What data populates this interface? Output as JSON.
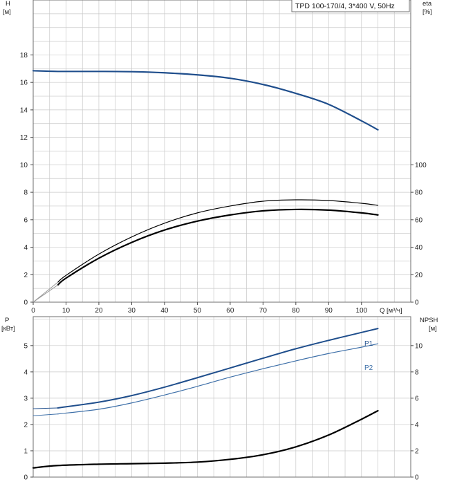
{
  "chart_title": "TPD 100-170/4, 3*400 V, 50Hz",
  "colors": {
    "blue": "#1f4e8c",
    "blue_light": "#3d6fa8",
    "black": "#000000",
    "grid": "#c8c8c8",
    "frame": "#6e6e6e"
  },
  "chart_data": [
    {
      "type": "line",
      "name": "top",
      "x_label": "Q [м³/ч]",
      "y_left_label": [
        "H",
        "[м]"
      ],
      "y_right_label": [
        "eta",
        "[%]"
      ],
      "x_ticks": [
        "0",
        "10",
        "20",
        "30",
        "40",
        "50",
        "60",
        "70",
        "80",
        "90",
        "100"
      ],
      "y_left_ticks": [
        "0",
        "2",
        "4",
        "6",
        "8",
        "10",
        "12",
        "14",
        "16",
        "18"
      ],
      "y_right_ticks": [
        "0",
        "20",
        "40",
        "60",
        "80",
        "100"
      ],
      "xlim": [
        0,
        115
      ],
      "y_left_lim": [
        0,
        22
      ],
      "y_right_lim": [
        0,
        220
      ],
      "grid": true,
      "series": [
        {
          "role": "H",
          "axis": "left",
          "color": "blue",
          "width": 2.2,
          "x": [
            0,
            7.5,
            20,
            30,
            40,
            50,
            60,
            70,
            80,
            90,
            100,
            105
          ],
          "y": [
            16.85,
            16.8,
            16.8,
            16.78,
            16.7,
            16.55,
            16.3,
            15.85,
            15.2,
            14.4,
            13.2,
            12.55
          ]
        },
        {
          "role": "eta",
          "axis": "right",
          "color": "black",
          "width": 1.2,
          "x": [
            7.5,
            10,
            20,
            30,
            40,
            50,
            60,
            70,
            80,
            90,
            100,
            105
          ],
          "y": [
            14.5,
            19.5,
            35,
            47.5,
            57.5,
            65,
            70,
            73.5,
            74.5,
            74,
            72,
            70.5
          ]
        },
        {
          "role": "eta-motor-pump",
          "axis": "right",
          "color": "black",
          "width": 2.2,
          "x": [
            7.5,
            10,
            20,
            30,
            40,
            50,
            60,
            70,
            80,
            90,
            100,
            105
          ],
          "y": [
            12.5,
            17.5,
            32,
            43.5,
            52.5,
            59,
            63.5,
            66.5,
            67.5,
            67,
            65,
            63.5
          ]
        },
        {
          "role": "eta-extension",
          "axis": "right",
          "color": "grey",
          "width": 1,
          "x": [
            0,
            7.5
          ],
          "y": [
            0,
            14.5
          ]
        },
        {
          "role": "eta-extension-2",
          "axis": "right",
          "color": "grey",
          "width": 1,
          "x": [
            0,
            7.5
          ],
          "y": [
            0,
            12.5
          ]
        }
      ]
    },
    {
      "type": "line",
      "name": "bottom",
      "y_left_label": [
        "P",
        "[кВт]"
      ],
      "y_right_label": [
        "NPSH",
        "[м]"
      ],
      "y_left_ticks": [
        "0",
        "1",
        "2",
        "3",
        "4",
        "5"
      ],
      "y_right_ticks": [
        "0",
        "2",
        "4",
        "6",
        "8",
        "10"
      ],
      "xlim": [
        0,
        115
      ],
      "y_left_lim": [
        0,
        6.1
      ],
      "y_right_lim": [
        0,
        12.2
      ],
      "grid": true,
      "series": [
        {
          "name": "P1",
          "axis": "left",
          "color": "blue",
          "width": 2,
          "x": [
            7.5,
            20,
            30,
            40,
            50,
            60,
            70,
            80,
            90,
            100,
            105
          ],
          "y": [
            2.63,
            2.85,
            3.1,
            3.42,
            3.78,
            4.15,
            4.52,
            4.88,
            5.2,
            5.5,
            5.65
          ]
        },
        {
          "name": "P2",
          "axis": "left",
          "color": "blue_light",
          "width": 1.2,
          "x": [
            7.5,
            20,
            30,
            40,
            50,
            60,
            70,
            80,
            90,
            100,
            105
          ],
          "y": [
            2.4,
            2.58,
            2.82,
            3.12,
            3.45,
            3.8,
            4.12,
            4.42,
            4.7,
            4.94,
            5.07
          ]
        },
        {
          "role": "NPSH",
          "axis": "right",
          "color": "black",
          "width": 2.2,
          "x": [
            0,
            7.5,
            20,
            30,
            40,
            50,
            60,
            70,
            80,
            90,
            100,
            105
          ],
          "y": [
            0.7,
            0.88,
            0.98,
            1.02,
            1.06,
            1.14,
            1.35,
            1.7,
            2.3,
            3.2,
            4.4,
            5.05
          ]
        },
        {
          "role": "P1-extension",
          "axis": "left",
          "color": "blue",
          "width": 1,
          "x": [
            0,
            7.5
          ],
          "y": [
            2.6,
            2.63
          ]
        },
        {
          "role": "P2-extension",
          "axis": "left",
          "color": "blue_light",
          "width": 1,
          "x": [
            0,
            7.5
          ],
          "y": [
            2.33,
            2.4
          ]
        }
      ]
    }
  ]
}
